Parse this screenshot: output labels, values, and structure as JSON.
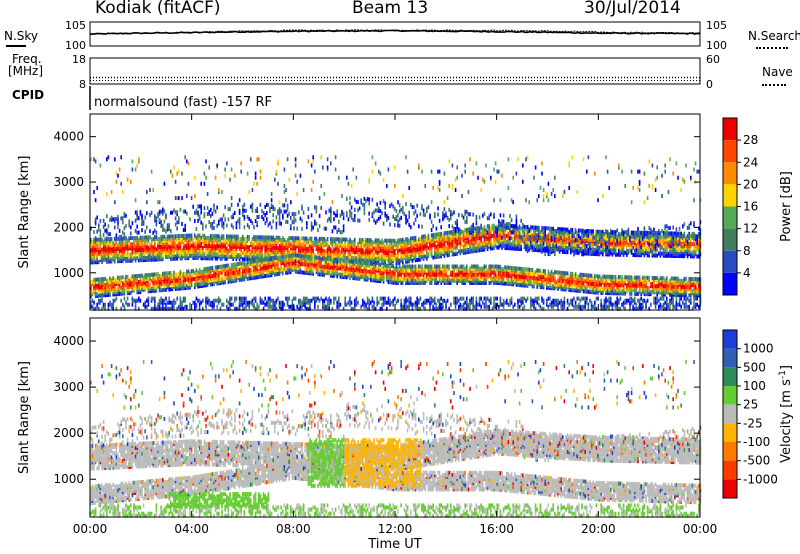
{
  "header": {
    "station": "Kodiak (fitACF)",
    "beam": "Beam 13",
    "date": "30/Jul/2014"
  },
  "noise_panel": {
    "left_label": "N.Sky",
    "right_label": "N.Search",
    "ticks": [
      "10^5",
      "10^0"
    ]
  },
  "freq_panel": {
    "left_label_1": "Freq.",
    "left_label_2": "[MHz]",
    "left_ticks": [
      "18",
      "8"
    ],
    "right_label": "Nave",
    "right_ticks": [
      "60",
      "0"
    ]
  },
  "cpid_panel": {
    "label": "CPID",
    "text": "normalsound (fast) -157 RF"
  },
  "colors": {
    "power": [
      "#0000ff",
      "#2a4cc0",
      "#3f7f5f",
      "#55aa55",
      "#ffd300",
      "#ff8c00",
      "#ff4400",
      "#ee0000"
    ],
    "velocity": [
      "#1a3fd6",
      "#2e5fb0",
      "#2f8a5a",
      "#66cc33",
      "#bbbbbb",
      "#ffb400",
      "#ff7a00",
      "#ff3b00",
      "#ee0000"
    ],
    "ground_scatter": "#bbbbbb"
  },
  "chart_data": [
    {
      "type": "line",
      "title": "N.Sky / N.Search",
      "yscale": "log",
      "ylim": [
        1,
        100000
      ],
      "x": [
        "00:00",
        "04:00",
        "08:00",
        "12:00",
        "16:00",
        "20:00",
        "00:00"
      ],
      "series": [
        {
          "name": "N.Sky",
          "values": [
            300,
            700,
            1500,
            2000,
            1200,
            500,
            400
          ]
        },
        {
          "name": "N.Search",
          "values": [
            300,
            800,
            2500,
            3000,
            2500,
            900,
            500
          ]
        }
      ]
    },
    {
      "type": "line",
      "title": "Freq. / Nave",
      "ylim": [
        8,
        18
      ],
      "x": [
        "00:00",
        "04:00",
        "08:00",
        "12:00",
        "16:00",
        "20:00",
        "00:00"
      ],
      "series": [
        {
          "name": "Freq.",
          "values": [
            10.5,
            10.5,
            10.5,
            10.5,
            10.5,
            10.5,
            10.5
          ]
        }
      ]
    },
    {
      "type": "heatmap",
      "title": "Power [dB]",
      "xlabel": "Time UT",
      "ylabel": "Slant Range [km]",
      "x_ticks": [
        "00:00",
        "04:00",
        "08:00",
        "12:00",
        "16:00",
        "20:00",
        "00:00"
      ],
      "x_hours": [
        0,
        4,
        8,
        12,
        16,
        20,
        24
      ],
      "y_ticks": [
        1000,
        2000,
        3000,
        4000
      ],
      "ylim": [
        180,
        4500
      ],
      "colorbar_label": "Power [dB]",
      "colorbar_ticks": [
        "4",
        "8",
        "12",
        "16",
        "20",
        "24",
        "28"
      ],
      "bands": [
        {
          "t": [
            0,
            24
          ],
          "r0": [
            1520,
            1620,
            1560,
            1500,
            1850,
            1700,
            1650
          ],
          "width": 230,
          "peak": 24
        },
        {
          "t": [
            0,
            24
          ],
          "r0": [
            700,
            900,
            1250,
            1000,
            1000,
            780,
            720
          ],
          "width": 180,
          "peak": 22
        }
      ]
    },
    {
      "type": "heatmap",
      "title": "Velocity [m s^-1]",
      "xlabel": "Time UT",
      "ylabel": "Slant Range [km]",
      "x_ticks": [
        "00:00",
        "04:00",
        "08:00",
        "12:00",
        "16:00",
        "20:00",
        "00:00"
      ],
      "x_hours": [
        0,
        4,
        8,
        12,
        16,
        20,
        24
      ],
      "y_ticks": [
        1000,
        2000,
        3000,
        4000
      ],
      "ylim": [
        180,
        4500
      ],
      "colorbar_label": "Velocity [m s^-1]",
      "colorbar_ticks": [
        "1000",
        "500",
        "100",
        "25",
        "-25",
        "-100",
        "-500",
        "-1000"
      ],
      "notes": "ground scatter shown in grey"
    }
  ],
  "xaxis": {
    "label": "Time UT",
    "ticks": [
      "00:00",
      "04:00",
      "08:00",
      "12:00",
      "16:00",
      "20:00",
      "00:00"
    ]
  },
  "yaxis": {
    "label": "Slant Range [km]",
    "ticks": [
      "1000",
      "2000",
      "3000",
      "4000"
    ]
  },
  "power_colorbar": {
    "label": "Power [dB]",
    "ticks": [
      "28",
      "24",
      "20",
      "16",
      "12",
      "8",
      "4"
    ]
  },
  "velocity_colorbar": {
    "label": "Velocity [m s",
    "label_exp": "-1",
    "label_end": "]",
    "ticks": [
      "1000",
      "500",
      "100",
      "25",
      "-25",
      "-100",
      "-500",
      "-1000"
    ]
  }
}
